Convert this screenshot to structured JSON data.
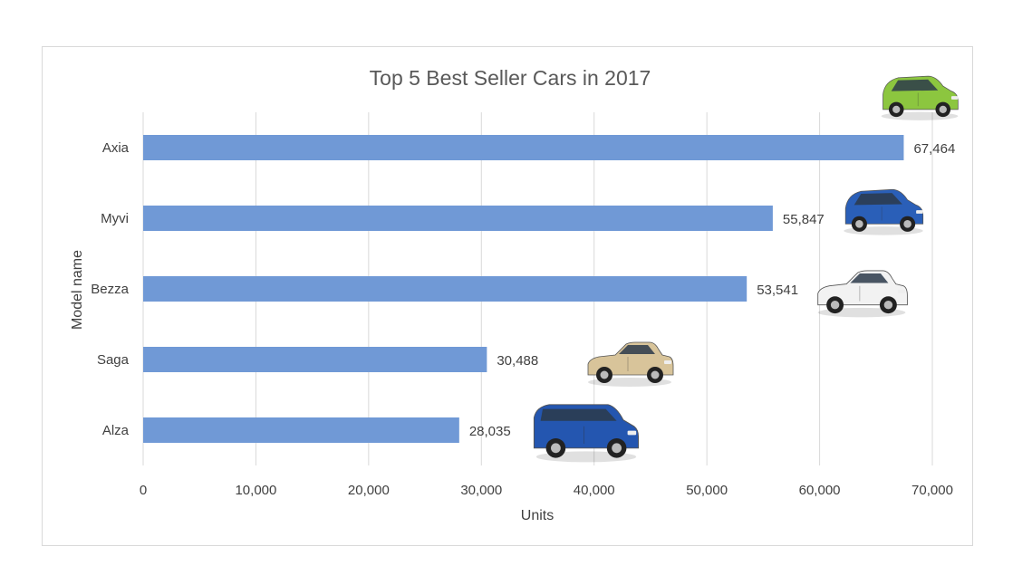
{
  "chart_data": {
    "type": "bar",
    "orientation": "horizontal",
    "title": "Top 5 Best Seller Cars in 2017",
    "xlabel": "Units",
    "ylabel": "Model name",
    "categories": [
      "Axia",
      "Myvi",
      "Bezza",
      "Saga",
      "Alza"
    ],
    "values": [
      67464,
      55847,
      53541,
      30488,
      28035
    ],
    "value_labels": [
      "67,464",
      "55,847",
      "53,541",
      "30,488",
      "28,035"
    ],
    "xlim": [
      0,
      70000
    ],
    "xticks": [
      0,
      10000,
      20000,
      30000,
      40000,
      50000,
      60000,
      70000
    ],
    "xtick_labels": [
      "0",
      "10,000",
      "20,000",
      "30,000",
      "40,000",
      "50,000",
      "60,000",
      "70,000"
    ],
    "grid": "vertical",
    "legend": "none",
    "bar_color": "#7099d6",
    "car_images": [
      {
        "category": "Axia",
        "body_color": "#8cc63f",
        "icon": "hatchback-car-icon"
      },
      {
        "category": "Myvi",
        "body_color": "#2a5fb8",
        "icon": "hatchback-car-icon"
      },
      {
        "category": "Bezza",
        "body_color": "#f2f2f2",
        "icon": "sedan-car-icon"
      },
      {
        "category": "Saga",
        "body_color": "#d8c49a",
        "icon": "sedan-car-icon"
      },
      {
        "category": "Alza",
        "body_color": "#2456b0",
        "icon": "mpv-car-icon"
      }
    ]
  }
}
